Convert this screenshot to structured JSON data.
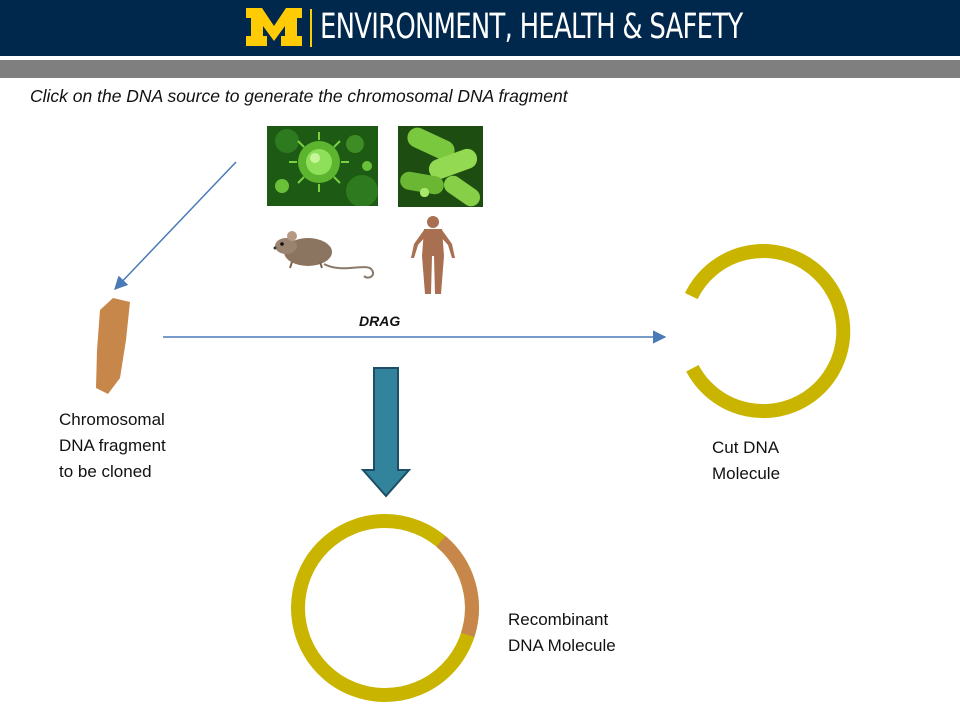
{
  "header": {
    "logo_alt": "University of Michigan block M logo",
    "title": "ENVIRONMENT, HEALTH & SAFETY",
    "background": "#00274c",
    "accent": "#ffcb05"
  },
  "instruction": "Click on the DNA source to generate the chromosomal DNA fragment",
  "dna_sources": [
    {
      "name": "virus",
      "icon": "virus-icon"
    },
    {
      "name": "bacteria",
      "icon": "bacteria-icon"
    },
    {
      "name": "mouse",
      "icon": "mouse-icon"
    },
    {
      "name": "human",
      "icon": "human-icon"
    }
  ],
  "labels": {
    "fragment": [
      "Chromosomal",
      "DNA fragment",
      "to be cloned"
    ],
    "drag": "DRAG",
    "cut": [
      "Cut DNA",
      "Molecule"
    ],
    "recombinant": [
      "Recombinant",
      "DNA Molecule"
    ]
  },
  "colors": {
    "plasmid": "#c9b400",
    "fragment": "#c8874a",
    "arrow": "#4a7ab8",
    "down_arrow": "#31849b"
  }
}
